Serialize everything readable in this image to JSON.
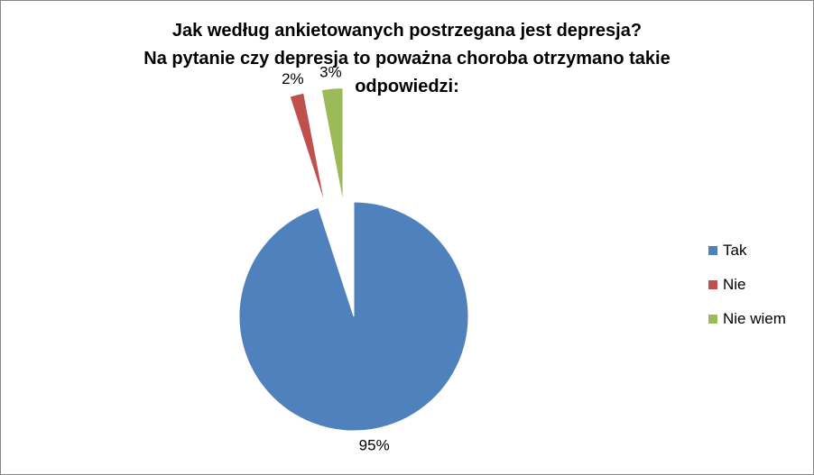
{
  "chart_data": {
    "type": "pie",
    "title_lines": [
      "Jak według ankietowanych postrzegana jest depresja?",
      "Na pytanie czy depresja to poważna choroba otrzymano takie",
      "odpowiedzi:"
    ],
    "categories": [
      "Tak",
      "Nie",
      "Nie wiem"
    ],
    "values": [
      95,
      2,
      3
    ],
    "data_labels": [
      "95%",
      "2%",
      "3%"
    ],
    "colors": [
      "#4F81BD",
      "#C0504D",
      "#9BBB59"
    ],
    "exploded": [
      false,
      true,
      true
    ],
    "legend_position": "right"
  }
}
